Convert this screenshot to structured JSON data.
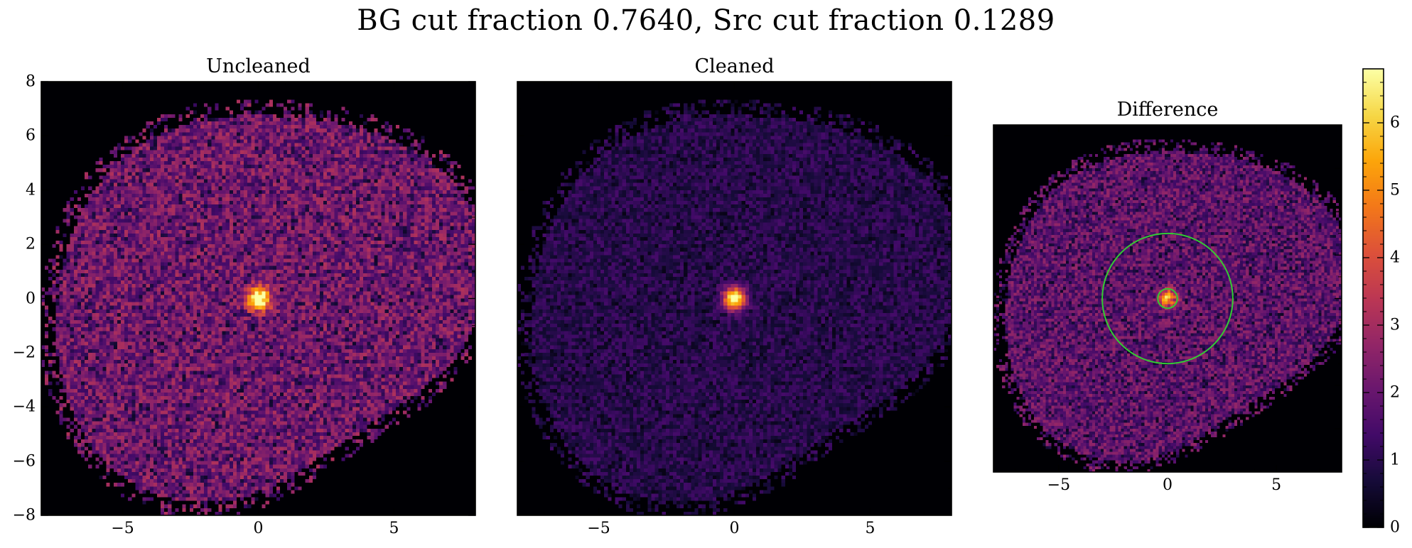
{
  "chart_data": {
    "type": "heatmap",
    "title": "BG cut fraction 0.7640, Src cut fraction 0.1289",
    "colormap": "inferno",
    "panels": [
      {
        "id": "uncleaned",
        "title": "Uncleaned",
        "xlim": [
          -8,
          8
        ],
        "ylim": [
          -8,
          8
        ],
        "xticks": [
          -5,
          0,
          5
        ],
        "yticks": [
          -8,
          -6,
          -4,
          -2,
          0,
          2,
          4,
          6,
          8
        ],
        "xtick_labels": [
          "−5",
          "0",
          "5"
        ],
        "ytick_labels": [
          "−8",
          "−6",
          "−4",
          "−2",
          "0",
          "2",
          "4",
          "6",
          "8"
        ],
        "source": {
          "x": 0.0,
          "y": 0.0,
          "peak_level": 6.8
        },
        "background_level": 2.2
      },
      {
        "id": "cleaned",
        "title": "Cleaned",
        "xlim": [
          -8,
          8
        ],
        "ylim": [
          -8,
          8
        ],
        "xticks": [
          -5,
          0,
          5
        ],
        "xtick_labels": [
          "−5",
          "0",
          "5"
        ],
        "source": {
          "x": 0.0,
          "y": 0.0,
          "peak_level": 6.5
        },
        "background_level": 1.0
      },
      {
        "id": "difference",
        "title": "Difference",
        "xlim": [
          -8,
          8
        ],
        "ylim": [
          -8,
          8
        ],
        "xticks": [
          -5,
          0,
          5
        ],
        "xtick_labels": [
          "−5",
          "0",
          "5"
        ],
        "source": {
          "x": 0.0,
          "y": 0.0,
          "peak_level": 4.0
        },
        "background_level": 1.9,
        "circles": [
          {
            "cx": 0.0,
            "cy": 0.0,
            "r": 0.45,
            "color": "#33cc33"
          },
          {
            "cx": 0.0,
            "cy": 0.0,
            "r": 3.0,
            "color": "#33cc33"
          }
        ]
      }
    ],
    "colorbar": {
      "min": 0,
      "max": 6.8,
      "ticks": [
        0,
        1,
        2,
        3,
        4,
        5,
        6
      ],
      "tick_labels": [
        "0",
        "1",
        "2",
        "3",
        "4",
        "5",
        "6"
      ]
    }
  }
}
